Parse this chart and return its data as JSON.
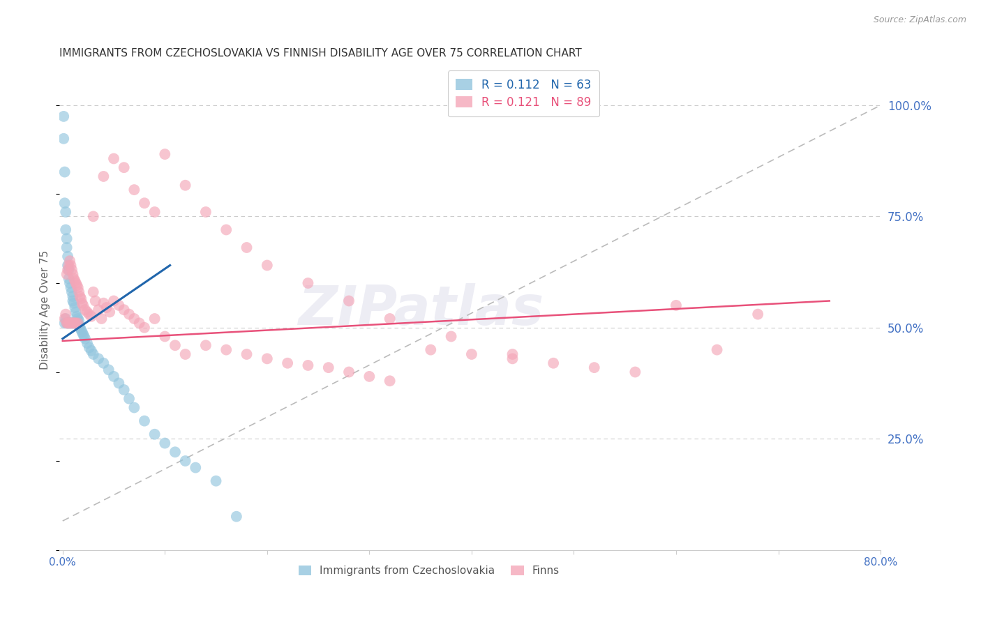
{
  "title": "IMMIGRANTS FROM CZECHOSLOVAKIA VS FINNISH DISABILITY AGE OVER 75 CORRELATION CHART",
  "source": "Source: ZipAtlas.com",
  "ylabel": "Disability Age Over 75",
  "legend_r1": "R = 0.112",
  "legend_n1": "N = 63",
  "legend_r2": "R = 0.121",
  "legend_n2": "N = 89",
  "legend_label1": "Immigrants from Czechoslovakia",
  "legend_label2": "Finns",
  "watermark": "ZIPatlas",
  "blue_color": "#92c5de",
  "pink_color": "#f4a6b8",
  "blue_line_color": "#2166ac",
  "pink_line_color": "#e8517a",
  "dashed_line_color": "#bbbbbb",
  "axis_color": "#4472c4",
  "grid_color": "#cccccc",
  "blue_x": [
    0.001,
    0.001,
    0.002,
    0.002,
    0.002,
    0.003,
    0.003,
    0.003,
    0.004,
    0.004,
    0.004,
    0.005,
    0.005,
    0.005,
    0.006,
    0.006,
    0.006,
    0.007,
    0.007,
    0.008,
    0.008,
    0.009,
    0.009,
    0.01,
    0.01,
    0.01,
    0.011,
    0.011,
    0.012,
    0.012,
    0.013,
    0.013,
    0.014,
    0.015,
    0.015,
    0.016,
    0.016,
    0.017,
    0.018,
    0.019,
    0.02,
    0.021,
    0.022,
    0.024,
    0.026,
    0.028,
    0.03,
    0.035,
    0.04,
    0.045,
    0.05,
    0.055,
    0.06,
    0.065,
    0.07,
    0.08,
    0.09,
    0.1,
    0.11,
    0.12,
    0.13,
    0.15,
    0.17
  ],
  "blue_y": [
    0.975,
    0.925,
    0.85,
    0.78,
    0.51,
    0.76,
    0.72,
    0.52,
    0.7,
    0.68,
    0.51,
    0.66,
    0.64,
    0.51,
    0.63,
    0.61,
    0.51,
    0.6,
    0.51,
    0.59,
    0.51,
    0.58,
    0.51,
    0.57,
    0.56,
    0.51,
    0.555,
    0.51,
    0.545,
    0.51,
    0.535,
    0.51,
    0.525,
    0.52,
    0.51,
    0.515,
    0.505,
    0.5,
    0.495,
    0.49,
    0.485,
    0.48,
    0.475,
    0.465,
    0.455,
    0.448,
    0.44,
    0.43,
    0.42,
    0.405,
    0.39,
    0.375,
    0.36,
    0.34,
    0.32,
    0.29,
    0.26,
    0.24,
    0.22,
    0.2,
    0.185,
    0.155,
    0.075
  ],
  "pink_x": [
    0.002,
    0.003,
    0.004,
    0.004,
    0.005,
    0.005,
    0.006,
    0.006,
    0.007,
    0.007,
    0.008,
    0.008,
    0.009,
    0.009,
    0.01,
    0.01,
    0.011,
    0.011,
    0.012,
    0.012,
    0.013,
    0.013,
    0.014,
    0.015,
    0.015,
    0.016,
    0.017,
    0.018,
    0.019,
    0.02,
    0.022,
    0.024,
    0.026,
    0.028,
    0.03,
    0.032,
    0.035,
    0.038,
    0.04,
    0.043,
    0.046,
    0.05,
    0.055,
    0.06,
    0.065,
    0.07,
    0.075,
    0.08,
    0.09,
    0.1,
    0.11,
    0.12,
    0.14,
    0.16,
    0.18,
    0.2,
    0.22,
    0.24,
    0.26,
    0.28,
    0.3,
    0.32,
    0.36,
    0.4,
    0.44,
    0.48,
    0.52,
    0.56,
    0.6,
    0.64,
    0.68,
    0.03,
    0.04,
    0.05,
    0.06,
    0.07,
    0.08,
    0.09,
    0.1,
    0.12,
    0.14,
    0.16,
    0.18,
    0.2,
    0.24,
    0.28,
    0.32,
    0.38,
    0.44
  ],
  "pink_y": [
    0.52,
    0.53,
    0.62,
    0.51,
    0.63,
    0.51,
    0.64,
    0.51,
    0.65,
    0.51,
    0.64,
    0.51,
    0.63,
    0.51,
    0.62,
    0.51,
    0.61,
    0.51,
    0.605,
    0.51,
    0.6,
    0.51,
    0.595,
    0.59,
    0.51,
    0.58,
    0.57,
    0.565,
    0.555,
    0.55,
    0.54,
    0.535,
    0.53,
    0.525,
    0.58,
    0.56,
    0.54,
    0.52,
    0.555,
    0.545,
    0.535,
    0.56,
    0.55,
    0.54,
    0.53,
    0.52,
    0.51,
    0.5,
    0.52,
    0.48,
    0.46,
    0.44,
    0.46,
    0.45,
    0.44,
    0.43,
    0.42,
    0.415,
    0.41,
    0.4,
    0.39,
    0.38,
    0.45,
    0.44,
    0.43,
    0.42,
    0.41,
    0.4,
    0.55,
    0.45,
    0.53,
    0.75,
    0.84,
    0.88,
    0.86,
    0.81,
    0.78,
    0.76,
    0.89,
    0.82,
    0.76,
    0.72,
    0.68,
    0.64,
    0.6,
    0.56,
    0.52,
    0.48,
    0.44
  ],
  "blue_line_x": [
    0.0,
    0.105
  ],
  "blue_line_y": [
    0.475,
    0.64
  ],
  "pink_line_x": [
    0.0,
    0.75
  ],
  "pink_line_y": [
    0.47,
    0.56
  ],
  "dash_line_x": [
    0.0,
    0.8
  ],
  "dash_line_y": [
    0.065,
    1.0
  ],
  "xlim": [
    -0.003,
    0.8
  ],
  "ylim": [
    0.0,
    1.08
  ],
  "xticks": [
    0.0,
    0.1,
    0.2,
    0.3,
    0.4,
    0.5,
    0.6,
    0.7,
    0.8
  ],
  "yticks": [
    0.25,
    0.5,
    0.75,
    1.0
  ],
  "ytick_labels": [
    "25.0%",
    "50.0%",
    "75.0%",
    "100.0%"
  ]
}
